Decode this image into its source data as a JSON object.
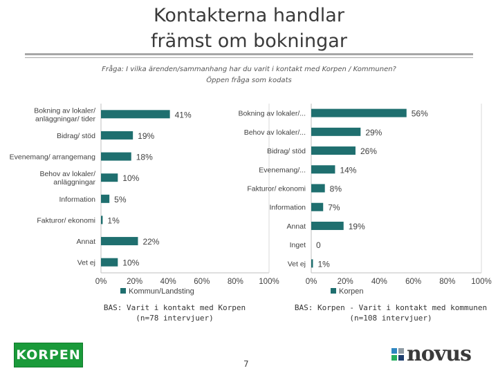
{
  "header": {
    "title_line1": "Kontakterna handlar",
    "title_line2": "främst om bokningar",
    "question_line1": "Fråga: I vilka ärenden/sammanhang har du varit i kontakt med Korpen / Kommunen?",
    "question_line2": "Öppen fråga som kodats"
  },
  "colors": {
    "bar": "#1f6f6f",
    "axis": "#bfbfbf",
    "grid": "#d9d9d9"
  },
  "chart_data": [
    {
      "type": "bar",
      "orientation": "horizontal",
      "categories": [
        "Bokning av lokaler/ anläggningar/ tider",
        "Bidrag/ stöd",
        "Evenemang/ arrangemang",
        "Behov av lokaler/ anläggningar",
        "Information",
        "Fakturor/ ekonomi",
        "Annat",
        "Vet ej"
      ],
      "series": [
        {
          "name": "Kommun/Landsting",
          "values": [
            41,
            19,
            18,
            10,
            5,
            1,
            22,
            10
          ]
        }
      ],
      "value_labels": [
        "41%",
        "19%",
        "18%",
        "10%",
        "5%",
        "1%",
        "22%",
        "10%"
      ],
      "xticks": [
        "0%",
        "20%",
        "40%",
        "60%",
        "80%",
        "100%"
      ],
      "xlim": [
        0,
        100
      ],
      "legend": "Kommun/Landsting",
      "legend_position": "bottom-left",
      "base_line1": "BAS: Varit i kontakt med Korpen",
      "base_line2": "(n=78 intervjuer)"
    },
    {
      "type": "bar",
      "orientation": "horizontal",
      "categories": [
        "Bokning av lokaler/...",
        "Behov av lokaler/...",
        "Bidrag/ stöd",
        "Evenemang/...",
        "Fakturor/ ekonomi",
        "Information",
        "Annat",
        "Inget",
        "Vet ej"
      ],
      "series": [
        {
          "name": "Korpen",
          "values": [
            56,
            29,
            26,
            14,
            8,
            7,
            19,
            0,
            1
          ]
        }
      ],
      "value_labels": [
        "56%",
        "29%",
        "26%",
        "14%",
        "8%",
        "7%",
        "19%",
        "0",
        "1%"
      ],
      "xticks": [
        "0%",
        "20%",
        "40%",
        "60%",
        "80%",
        "100%"
      ],
      "xlim": [
        0,
        100
      ],
      "legend": "Korpen",
      "legend_position": "bottom-left",
      "base_line1": "BAS: Korpen - Varit i kontakt med kommunen",
      "base_line2": "(n=108 intervjuer)"
    }
  ],
  "footer": {
    "korpen_logo": "KORPEN",
    "page_number": "7",
    "novus_logo": "novus",
    "novus_colors": [
      "#2e86c1",
      "#8e9aa3",
      "#27ae60",
      "#1f3f6f"
    ]
  }
}
